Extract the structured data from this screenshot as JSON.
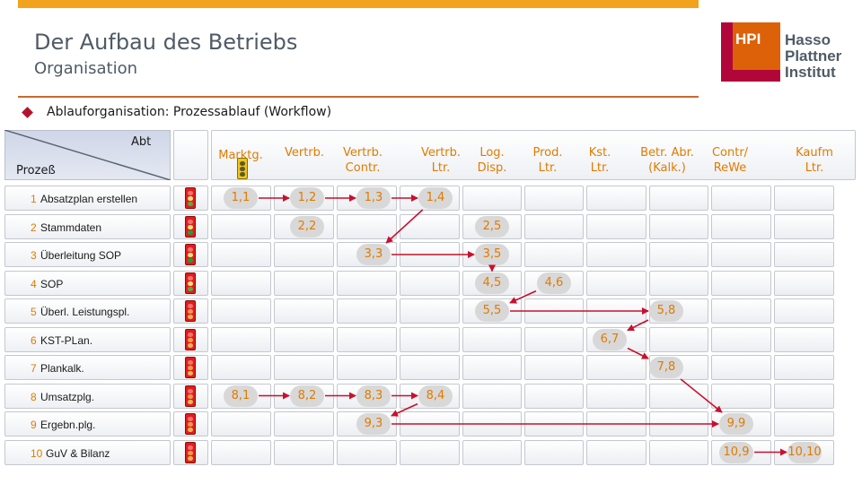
{
  "header": {
    "title": "Der Aufbau des Betriebs",
    "subtitle": "Organisation"
  },
  "bullet": {
    "text": "Ablauforganisation: Prozessablauf (Workflow)"
  },
  "logo": {
    "mark": "HPI",
    "lines": [
      "Hasso",
      "Plattner",
      "Institut"
    ]
  },
  "table": {
    "corner": {
      "top": "Abt",
      "bottom": "Prozeß"
    },
    "columns": [
      {
        "key": "marktg",
        "label": [
          "Marktg."
        ]
      },
      {
        "key": "vertrb",
        "label": [
          "Vertrb."
        ]
      },
      {
        "key": "vertrb_contr",
        "label": [
          "Vertrb.",
          "Contr."
        ]
      },
      {
        "key": "vertrb_ltr",
        "label": [
          "Vertrb.",
          "Ltr."
        ]
      },
      {
        "key": "log_disp",
        "label": [
          "Log.",
          "Disp."
        ]
      },
      {
        "key": "prod_ltr",
        "label": [
          "Prod.",
          "Ltr."
        ]
      },
      {
        "key": "kst_ltr",
        "label": [
          "Kst.",
          "Ltr."
        ]
      },
      {
        "key": "betr_abr",
        "label": [
          "Betr. Abr.",
          "(Kalk.)"
        ]
      },
      {
        "key": "contr_rewe",
        "label": [
          "Contr/",
          "ReWe"
        ]
      },
      {
        "key": "kaufm_ltr",
        "label": [
          "Kaufm",
          "Ltr."
        ]
      }
    ],
    "rows": [
      {
        "num": "1",
        "label": "Absatzplan erstellen",
        "status": "yellow"
      },
      {
        "num": "2",
        "label": "Stammdaten",
        "status": "green"
      },
      {
        "num": "3",
        "label": "Überleitung SOP",
        "status": "green"
      },
      {
        "num": "4",
        "label": "SOP",
        "status": "yellow"
      },
      {
        "num": "5",
        "label": "Überl. Leistungspl.",
        "status": "red"
      },
      {
        "num": "6",
        "label": "KST-PLan.",
        "status": "red"
      },
      {
        "num": "7",
        "label": "Plankalk.",
        "status": "red"
      },
      {
        "num": "8",
        "label": "Umsatzplg.",
        "status": "red"
      },
      {
        "num": "9",
        "label": "Ergebn.plg.",
        "status": "red"
      },
      {
        "num": "10",
        "label": "GuV & Bilanz",
        "status": "red"
      }
    ],
    "steps": [
      {
        "label": "1,1",
        "row": 1,
        "col": 1
      },
      {
        "label": "1,2",
        "row": 1,
        "col": 2
      },
      {
        "label": "1,3",
        "row": 1,
        "col": 3
      },
      {
        "label": "1,4",
        "row": 1,
        "col": 4
      },
      {
        "label": "2,2",
        "row": 2,
        "col": 2
      },
      {
        "label": "2,5",
        "row": 2,
        "col": 5
      },
      {
        "label": "3,3",
        "row": 3,
        "col": 3
      },
      {
        "label": "3,5",
        "row": 3,
        "col": 5
      },
      {
        "label": "4,5",
        "row": 4,
        "col": 5
      },
      {
        "label": "4,6",
        "row": 4,
        "col": 6
      },
      {
        "label": "5,5",
        "row": 5,
        "col": 5
      },
      {
        "label": "5,8",
        "row": 5,
        "col": 8
      },
      {
        "label": "6,7",
        "row": 6,
        "col": 7
      },
      {
        "label": "7,8",
        "row": 7,
        "col": 8
      },
      {
        "label": "8,1",
        "row": 8,
        "col": 1
      },
      {
        "label": "8,2",
        "row": 8,
        "col": 2
      },
      {
        "label": "8,3",
        "row": 8,
        "col": 3
      },
      {
        "label": "8,4",
        "row": 8,
        "col": 4
      },
      {
        "label": "9,3",
        "row": 9,
        "col": 3
      },
      {
        "label": "9,9",
        "row": 9,
        "col": 9
      },
      {
        "label": "10,9",
        "row": 10,
        "col": 9
      },
      {
        "label": "10,10",
        "row": 10,
        "col": 10
      }
    ],
    "flows": [
      [
        "1,1",
        "1,2"
      ],
      [
        "1,2",
        "1,3"
      ],
      [
        "1,3",
        "1,4"
      ],
      [
        "1,4",
        "3,3"
      ],
      [
        "3,3",
        "3,5"
      ],
      [
        "3,5",
        "4,5"
      ],
      [
        "4,6",
        "5,5"
      ],
      [
        "5,5",
        "5,8"
      ],
      [
        "5,8",
        "6,7"
      ],
      [
        "6,7",
        "7,8"
      ],
      [
        "7,8",
        "9,9"
      ],
      [
        "8,1",
        "8,2"
      ],
      [
        "8,2",
        "8,3"
      ],
      [
        "8,3",
        "8,4"
      ],
      [
        "8,4",
        "9,3"
      ],
      [
        "9,3",
        "9,9"
      ],
      [
        "10,9",
        "10,10"
      ]
    ],
    "colors": {
      "arrow": "#c8102e",
      "accent": "#e07b00",
      "badge": "#d8d8d8"
    }
  }
}
